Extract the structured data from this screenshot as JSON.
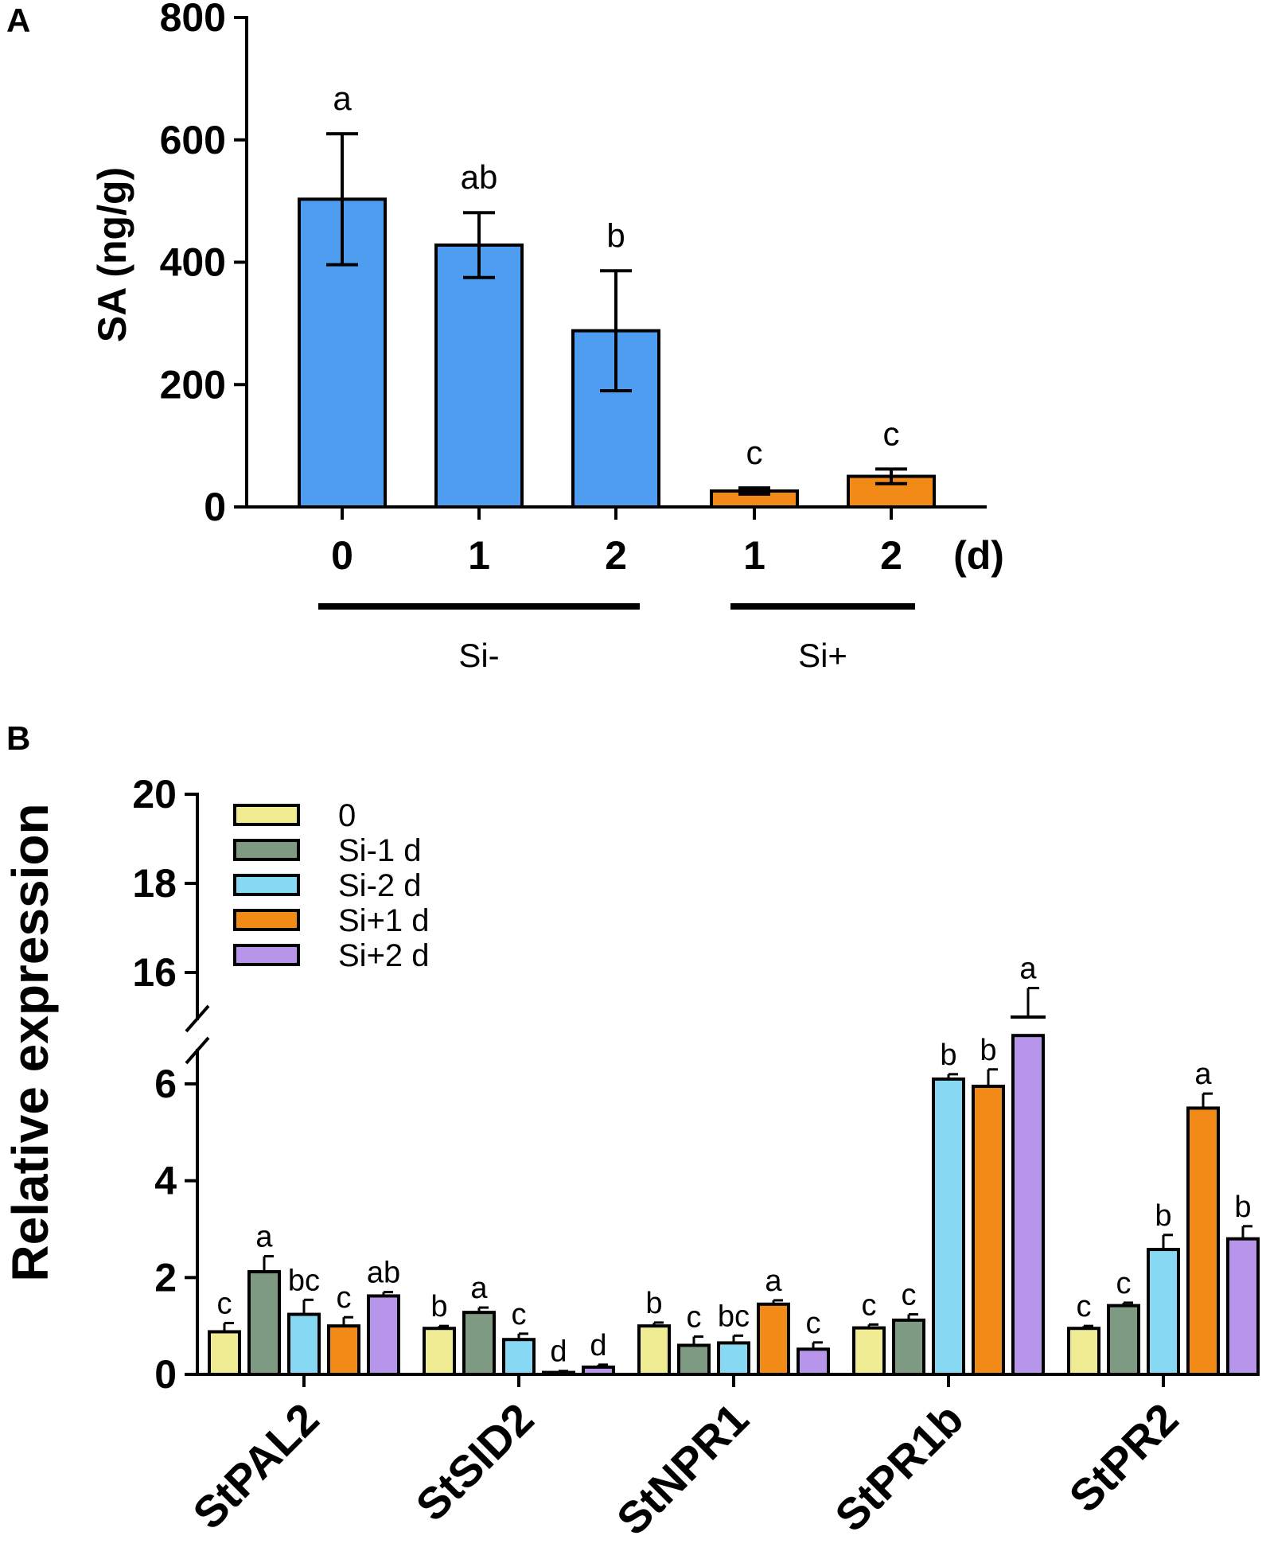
{
  "chart_data": [
    {
      "panel": "A",
      "type": "bar",
      "ylabel": "SA (ng/g)",
      "ylim": [
        0,
        800
      ],
      "yticks": [
        0,
        200,
        400,
        600,
        800
      ],
      "unit_label": "(d)",
      "categories": [
        "0",
        "1",
        "2",
        "1",
        "2"
      ],
      "values": [
        503,
        428,
        288,
        26,
        50
      ],
      "errors": [
        107,
        53,
        98,
        5,
        12
      ],
      "significance": [
        "a",
        "ab",
        "b",
        "c",
        "c"
      ],
      "bar_colors": [
        "#4f9df0",
        "#4f9df0",
        "#4f9df0",
        "#f28a18",
        "#f28a18"
      ],
      "groups": [
        {
          "label": "Si-",
          "start": 0,
          "end": 2
        },
        {
          "label": "Si+",
          "start": 3,
          "end": 4
        }
      ]
    },
    {
      "panel": "B",
      "type": "bar",
      "ylabel": "Relative expression",
      "yticks_lower": [
        0,
        2,
        4,
        6
      ],
      "yticks_upper": [
        16,
        18,
        20
      ],
      "axis_break": [
        7,
        15
      ],
      "categories": [
        "StPAL2",
        "StSID2",
        "StNPR1",
        "StPR1b",
        "StPR2"
      ],
      "series": [
        {
          "name": "0",
          "color": "#f0ec94",
          "values": [
            0.88,
            0.95,
            1.0,
            0.96,
            0.95
          ],
          "errors": [
            0.18,
            0.05,
            0.07,
            0.07,
            0.05
          ],
          "significance": [
            "c",
            "b",
            "b",
            "c",
            "c"
          ]
        },
        {
          "name": "Si-1 d",
          "color": "#7f9a82",
          "values": [
            2.12,
            1.28,
            0.6,
            1.12,
            1.42
          ],
          "errors": [
            0.32,
            0.1,
            0.18,
            0.12,
            0.06
          ],
          "significance": [
            "a",
            "a",
            "c",
            "c",
            "c"
          ]
        },
        {
          "name": "Si-2 d",
          "color": "#86d8f3",
          "values": [
            1.24,
            0.72,
            0.65,
            6.1,
            2.58
          ],
          "errors": [
            0.3,
            0.12,
            0.15,
            0.1,
            0.3
          ],
          "significance": [
            "bc",
            "c",
            "bc",
            "b",
            "b"
          ]
        },
        {
          "name": "Si+1 d",
          "color": "#f28a18",
          "values": [
            1.0,
            0.04,
            1.45,
            5.95,
            5.5
          ],
          "errors": [
            0.18,
            0.03,
            0.08,
            0.35,
            0.3
          ],
          "significance": [
            "c",
            "d",
            "a",
            "b",
            "a"
          ]
        },
        {
          "name": "Si+2 d",
          "color": "#b695ea",
          "values": [
            1.62,
            0.15,
            0.52,
            15.0,
            2.8
          ],
          "errors": [
            0.08,
            0.05,
            0.14,
            0.65,
            0.26
          ],
          "significance": [
            "ab",
            "d",
            "c",
            "a",
            "b"
          ]
        }
      ]
    }
  ]
}
